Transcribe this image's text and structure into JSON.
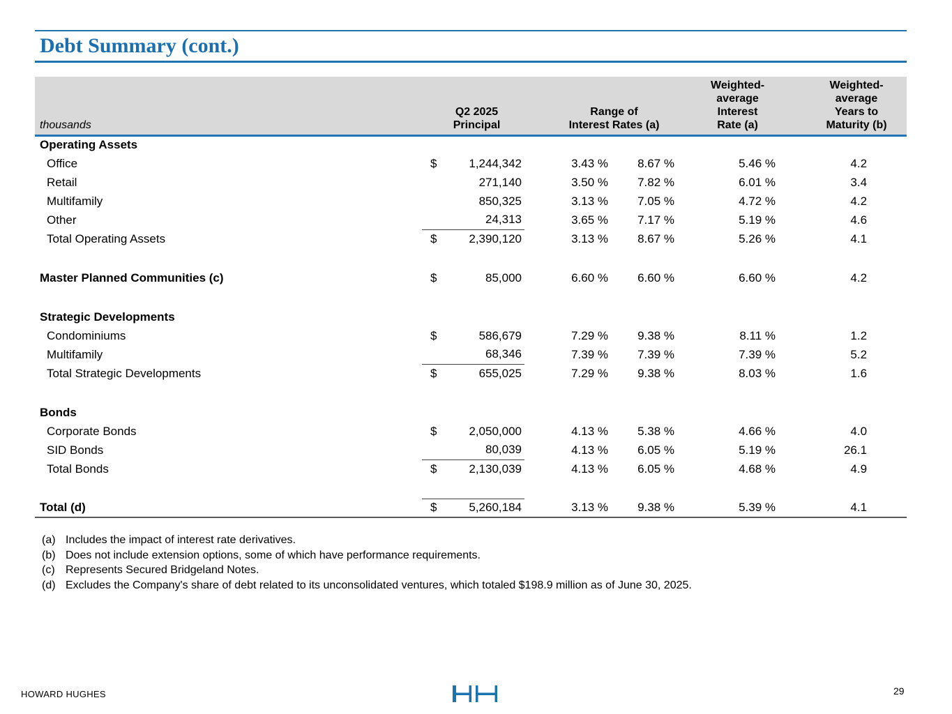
{
  "title": "Debt Summary (cont.)",
  "colors": {
    "accent_blue": "#1f74ae",
    "header_gray": "#d9d9d9",
    "rule_dark": "#3f3f3f",
    "bottom_rule": "#595959"
  },
  "table": {
    "header": {
      "thousands": "thousands",
      "principal": "Q2 2025\nPrincipal",
      "range": "Range of\nInterest Rates (a)",
      "wa_rate": "Weighted-\naverage\nInterest\nRate (a)",
      "wa_years": "Weighted-\naverage\nYears to\nMaturity (b)"
    },
    "rows": [
      {
        "type": "section",
        "label": "Operating Assets"
      },
      {
        "type": "item",
        "label": "Office",
        "dollar": "$",
        "principal": "1,244,342",
        "low": "3.43 %",
        "high": "8.67 %",
        "wa": "5.46 %",
        "years": "4.2"
      },
      {
        "type": "item",
        "label": "Retail",
        "principal": "271,140",
        "low": "3.50 %",
        "high": "7.82 %",
        "wa": "6.01 %",
        "years": "3.4"
      },
      {
        "type": "item",
        "label": "Multifamily",
        "principal": "850,325",
        "low": "3.13 %",
        "high": "7.05 %",
        "wa": "4.72 %",
        "years": "4.2"
      },
      {
        "type": "item",
        "label": "Other",
        "principal": "24,313",
        "low": "3.65 %",
        "high": "7.17 %",
        "wa": "5.19 %",
        "years": "4.6",
        "rule_below": true
      },
      {
        "type": "item",
        "label": "Total Operating Assets",
        "dollar": "$",
        "principal": "2,390,120",
        "low": "3.13 %",
        "high": "8.67 %",
        "wa": "5.26 %",
        "years": "4.1"
      },
      {
        "type": "spacer"
      },
      {
        "type": "section-row",
        "label": "Master Planned Communities (c)",
        "dollar": "$",
        "principal": "85,000",
        "low": "6.60 %",
        "high": "6.60 %",
        "wa": "6.60 %",
        "years": "4.2"
      },
      {
        "type": "spacer"
      },
      {
        "type": "section",
        "label": "Strategic Developments"
      },
      {
        "type": "item",
        "label": "Condominiums",
        "dollar": "$",
        "principal": "586,679",
        "low": "7.29 %",
        "high": "9.38 %",
        "wa": "8.11 %",
        "years": "1.2"
      },
      {
        "type": "item",
        "label": "Multifamily",
        "principal": "68,346",
        "low": "7.39 %",
        "high": "7.39 %",
        "wa": "7.39 %",
        "years": "5.2",
        "rule_below": true
      },
      {
        "type": "item",
        "label": "Total Strategic Developments",
        "dollar": "$",
        "principal": "655,025",
        "low": "7.29 %",
        "high": "9.38 %",
        "wa": "8.03 %",
        "years": "1.6"
      },
      {
        "type": "spacer"
      },
      {
        "type": "section",
        "label": "Bonds"
      },
      {
        "type": "item",
        "label": "Corporate Bonds",
        "dollar": "$",
        "principal": "2,050,000",
        "low": "4.13 %",
        "high": "5.38 %",
        "wa": "4.66 %",
        "years": "4.0"
      },
      {
        "type": "item",
        "label": "SID Bonds",
        "principal": "80,039",
        "low": "4.13 %",
        "high": "6.05 %",
        "wa": "5.19 %",
        "years": "26.1",
        "rule_below": true
      },
      {
        "type": "item",
        "label": "Total Bonds",
        "dollar": "$",
        "principal": "2,130,039",
        "low": "4.13 %",
        "high": "6.05 %",
        "wa": "4.68 %",
        "years": "4.9"
      },
      {
        "type": "spacer"
      },
      {
        "type": "grand-total",
        "label": "Total (d)",
        "dollar": "$",
        "principal": "5,260,184",
        "low": "3.13 %",
        "high": "9.38 %",
        "wa": "5.39 %",
        "years": "4.1"
      }
    ]
  },
  "footnotes": [
    {
      "marker": "(a)",
      "text": "Includes the impact of interest rate derivatives."
    },
    {
      "marker": "(b)",
      "text": "Does not include extension options, some of which have performance requirements."
    },
    {
      "marker": "(c)",
      "text": "Represents Secured Bridgeland Notes."
    },
    {
      "marker": "(d)",
      "text": "Excludes the Company's share of debt related to its unconsolidated ventures, which totaled $198.9 million as of June 30, 2025."
    }
  ],
  "footer": {
    "company": "HOWARD HUGHES",
    "page_number": "29"
  }
}
